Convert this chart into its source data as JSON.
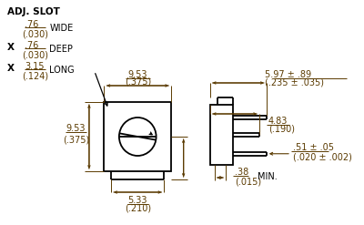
{
  "bg_color": "#ffffff",
  "line_color": "#000000",
  "dim_color": "#5a3a00",
  "fig_width": 4.0,
  "fig_height": 2.47,
  "dpi": 100,
  "ann": {
    "adj_slot": "ADJ. SLOT",
    "wide": ".76\n(.030)",
    "wide_lbl": "WIDE",
    "deep": ".76\n(.030)",
    "deep_lbl": "DEEP",
    "long": "3.15\n(.124)",
    "long_lbl": "LONG",
    "d953t": "9.53\n(.375)",
    "d533": "5.33\n(.210)",
    "d953l": "9.53\n(.375)",
    "d597": "5.97 ± .89\n(.235 ± .035)",
    "d483": "4.83\n(.190)",
    "d051": ".51 ± .05\n(.020 ± .002)",
    "d038": ".38\n(.015)",
    "min": "MIN."
  }
}
